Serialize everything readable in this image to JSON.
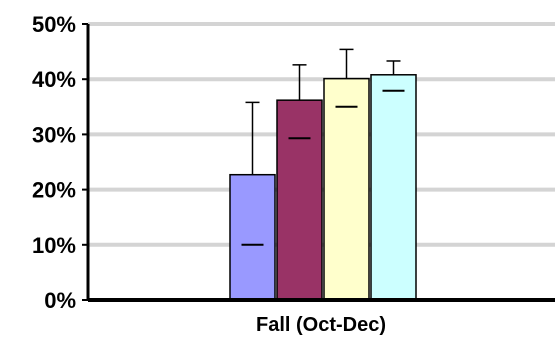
{
  "chart_data": {
    "type": "bar",
    "title": "",
    "xlabel": "",
    "ylabel": "",
    "categories": [
      "Fall (Oct-Dec)"
    ],
    "y_ticks": [
      "0%",
      "10%",
      "20%",
      "30%",
      "40%",
      "50%"
    ],
    "ylim": [
      0,
      50
    ],
    "grid": true,
    "legend": "none",
    "series": [
      {
        "color": "#9999ff",
        "values": [
          22.7
        ],
        "error_upper": [
          35.8
        ],
        "inner_marker": [
          10.0
        ]
      },
      {
        "color": "#993366",
        "values": [
          36.2
        ],
        "error_upper": [
          42.6
        ],
        "inner_marker": [
          29.3
        ]
      },
      {
        "color": "#ffffcc",
        "values": [
          40.1
        ],
        "error_upper": [
          45.4
        ],
        "inner_marker": [
          35.0
        ]
      },
      {
        "color": "#ccffff",
        "values": [
          40.8
        ],
        "error_upper": [
          43.3
        ],
        "inner_marker": [
          37.9
        ]
      }
    ]
  }
}
